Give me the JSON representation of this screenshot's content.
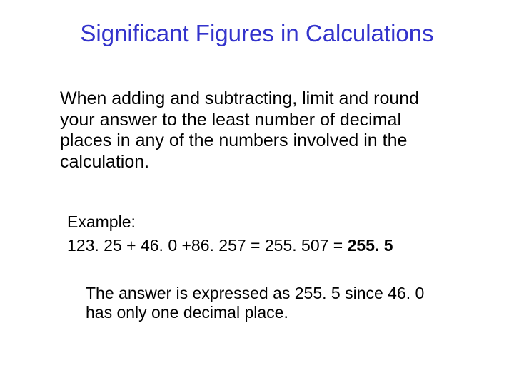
{
  "title": {
    "text": "Significant Figures in Calculations",
    "color": "#3333cc",
    "fontsize": 33
  },
  "body": {
    "text": "When adding and subtracting, limit and round your answer to the least number of decimal places in any of the numbers involved in the calculation.",
    "color": "#000000",
    "fontsize": 25
  },
  "example": {
    "label": "Example:",
    "equation_plain": "123. 25 + 46. 0 +86. 257 = 255. 507 = ",
    "equation_bold": "255. 5",
    "fontsize": 23
  },
  "explain": {
    "text": "The answer is expressed as 255. 5 since 46. 0 has only one decimal place.",
    "fontsize": 23
  },
  "background_color": "#ffffff"
}
